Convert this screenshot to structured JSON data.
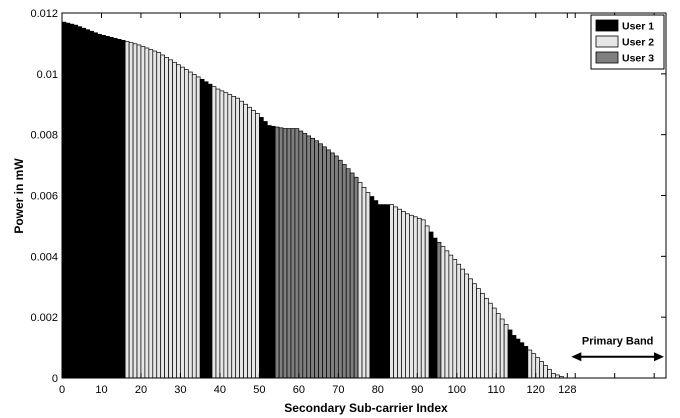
{
  "chart_data": {
    "type": "bar",
    "xlabel": "Secondary Sub-carrier Index",
    "ylabel": "Power in mW",
    "xlim": [
      0,
      153
    ],
    "ylim": [
      0,
      0.012
    ],
    "xticks": [
      0,
      10,
      20,
      30,
      40,
      50,
      60,
      70,
      80,
      90,
      100,
      110,
      120,
      128
    ],
    "yticks": [
      0,
      0.002,
      0.004,
      0.006,
      0.008,
      0.01,
      0.012
    ],
    "ytick_labels": [
      "0",
      "0.002",
      "0.004",
      "0.006",
      "0.008",
      "0.01",
      "0.012"
    ],
    "grid": false,
    "legend": "top-right",
    "series": [
      {
        "name": "User 1",
        "color": "#000000"
      },
      {
        "name": "User 2",
        "color": "#e6e6e6"
      },
      {
        "name": "User 3",
        "color": "#7f7f7f"
      }
    ],
    "power_profile": [
      [
        1,
        0.0117
      ],
      [
        4,
        0.0116
      ],
      [
        10,
        0.0113
      ],
      [
        16,
        0.0111
      ],
      [
        20,
        0.01095
      ],
      [
        25,
        0.0107
      ],
      [
        30,
        0.0103
      ],
      [
        35,
        0.0099
      ],
      [
        40,
        0.0095
      ],
      [
        45,
        0.0092
      ],
      [
        50,
        0.0087
      ],
      [
        53,
        0.0083
      ],
      [
        57,
        0.0082
      ],
      [
        60,
        0.0082
      ],
      [
        65,
        0.0078
      ],
      [
        70,
        0.0073
      ],
      [
        75,
        0.0066
      ],
      [
        78,
        0.0061
      ],
      [
        81,
        0.0057
      ],
      [
        84,
        0.0057
      ],
      [
        88,
        0.0054
      ],
      [
        92,
        0.0052
      ],
      [
        95,
        0.0046
      ],
      [
        100,
        0.0039
      ],
      [
        105,
        0.0031
      ],
      [
        110,
        0.0023
      ],
      [
        115,
        0.0014
      ],
      [
        120,
        0.0008
      ],
      [
        125,
        0.00015
      ],
      [
        128,
        0.0
      ]
    ],
    "user_segments": [
      {
        "user": "User 1",
        "from": 1,
        "to": 16
      },
      {
        "user": "User 2",
        "from": 17,
        "to": 35
      },
      {
        "user": "User 1",
        "from": 36,
        "to": 38
      },
      {
        "user": "User 2",
        "from": 39,
        "to": 50
      },
      {
        "user": "User 1",
        "from": 51,
        "to": 54
      },
      {
        "user": "User 3",
        "from": 55,
        "to": 75
      },
      {
        "user": "User 2",
        "from": 76,
        "to": 78
      },
      {
        "user": "User 1",
        "from": 79,
        "to": 83
      },
      {
        "user": "User 2",
        "from": 84,
        "to": 93
      },
      {
        "user": "User 1",
        "from": 94,
        "to": 95
      },
      {
        "user": "User 3",
        "from": 96,
        "to": 96
      },
      {
        "user": "User 2",
        "from": 97,
        "to": 113
      },
      {
        "user": "User 1",
        "from": 114,
        "to": 118
      },
      {
        "user": "User 2",
        "from": 119,
        "to": 128
      }
    ],
    "annotation": {
      "label": "Primary Band",
      "from": 128,
      "to": 153
    }
  }
}
